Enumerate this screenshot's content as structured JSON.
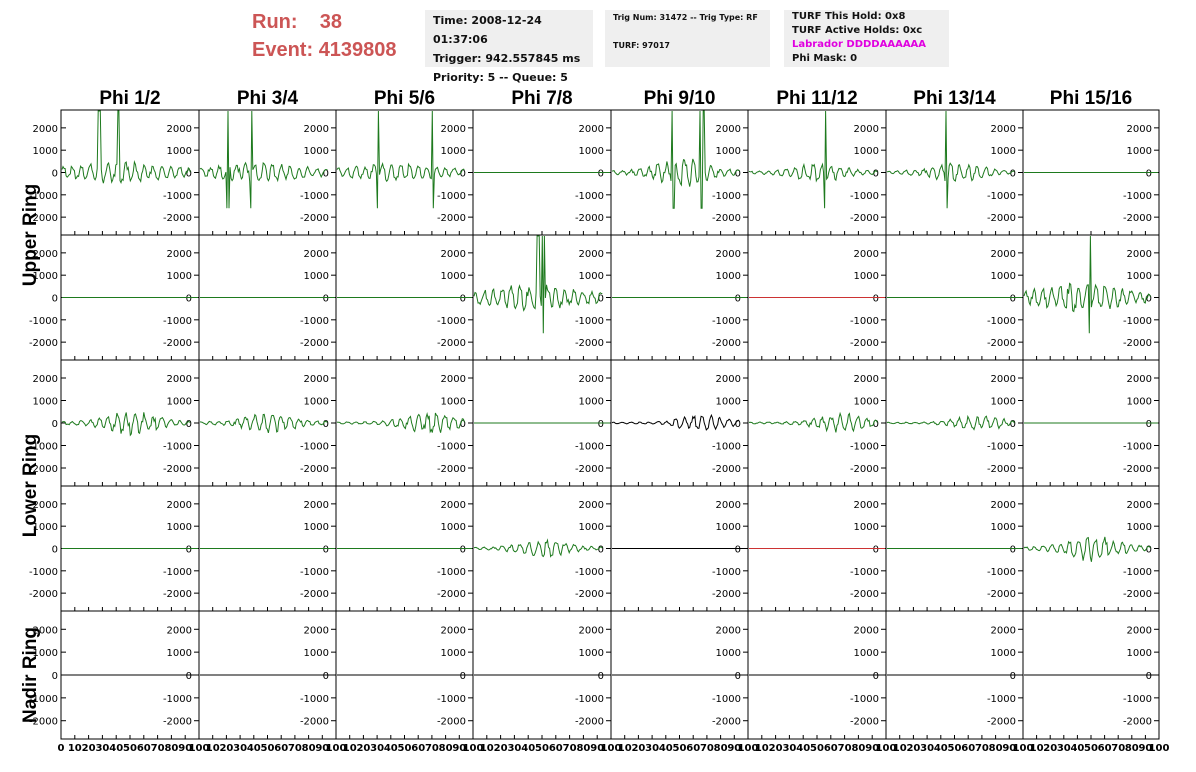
{
  "header": {
    "run_label": "Run:",
    "run_value": "38",
    "event_label": "Event:",
    "event_value": "4139808"
  },
  "info_box_1": {
    "time": "Time: 2008-12-24 01:37:06",
    "trigger": "Trigger: 942.557845 ms",
    "priority": "Priority: 5 -- Queue: 5"
  },
  "info_box_2": {
    "trig": "Trig Num: 31472 -- Trig Type: RF",
    "turf": "TURF: 97017"
  },
  "info_box_3": {
    "hold": "TURF This Hold: 0x8",
    "active": "TURF Active Holds: 0xc",
    "labrador": "Labrador DDDDAAAAAA",
    "phimask": "Phi Mask: 0"
  },
  "chart_data": {
    "type": "line",
    "columns": [
      "Phi 1/2",
      "Phi 3/4",
      "Phi 5/6",
      "Phi 7/8",
      "Phi 9/10",
      "Phi 11/12",
      "Phi 13/14",
      "Phi 15/16"
    ],
    "rows": [
      "Upper Ring",
      "Upper Ring",
      "Lower Ring",
      "Lower Ring",
      "Nadir Ring"
    ],
    "row_labels": [
      "Upper Ring",
      "Lower Ring",
      "Nadir Ring"
    ],
    "ylim": [
      -2800,
      2800
    ],
    "yticks": [
      -2000,
      -1000,
      0,
      1000,
      2000
    ],
    "xlim": [
      0,
      100
    ],
    "xtick_labels": [
      "0",
      "10",
      "20",
      "30",
      "40",
      "50",
      "60",
      "70",
      "80",
      "90",
      "100"
    ],
    "colors": {
      "signal": "#1e7a1e",
      "black": "#000000",
      "red": "#cc3333",
      "grid": "#000000"
    },
    "panels": [
      [
        {
          "amp": 550,
          "env": "broad",
          "spikes": [
            29,
            44
          ],
          "color": "#1e7a1e"
        },
        {
          "amp": 500,
          "env": "broad",
          "spikes": [
            22,
            40
          ],
          "color": "#1e7a1e"
        },
        {
          "amp": 450,
          "env": "broad",
          "spikes": [
            32,
            75
          ],
          "color": "#1e7a1e"
        },
        {
          "amp": 0,
          "env": "flat",
          "spikes": [],
          "color": "#1e7a1e"
        },
        {
          "amp": 700,
          "env": "mid",
          "spikes": [
            48,
            70,
            72
          ],
          "color": "#1e7a1e"
        },
        {
          "amp": 450,
          "env": "mid",
          "spikes": [
            59
          ],
          "color": "#1e7a1e"
        },
        {
          "amp": 500,
          "env": "mid",
          "spikes": [
            47
          ],
          "color": "#1e7a1e"
        },
        {
          "amp": 0,
          "env": "flat",
          "spikes": [],
          "color": "#1e7a1e"
        }
      ],
      [
        {
          "amp": 0,
          "env": "flat",
          "spikes": [],
          "color": "#1e7a1e"
        },
        {
          "amp": 0,
          "env": "flat",
          "spikes": [],
          "color": "#1e7a1e"
        },
        {
          "amp": 0,
          "env": "flat",
          "spikes": [],
          "color": "#1e7a1e"
        },
        {
          "amp": 650,
          "env": "broad",
          "spikes": [
            50,
            54
          ],
          "color": "#1e7a1e"
        },
        {
          "amp": 0,
          "env": "flat",
          "spikes": [],
          "color": "#1e7a1e"
        },
        {
          "amp": 0,
          "env": "flat",
          "spikes": [],
          "color": "#cc3333"
        },
        {
          "amp": 0,
          "env": "flat",
          "spikes": [],
          "color": "#1e7a1e"
        },
        {
          "amp": 700,
          "env": "broad",
          "spikes": [
            52
          ],
          "color": "#1e7a1e"
        }
      ],
      [
        {
          "amp": 550,
          "env": "mid",
          "spikes": [],
          "color": "#1e7a1e"
        },
        {
          "amp": 450,
          "env": "mid",
          "spikes": [],
          "color": "#1e7a1e"
        },
        {
          "amp": 500,
          "env": "late",
          "spikes": [],
          "color": "#1e7a1e"
        },
        {
          "amp": 0,
          "env": "flat",
          "spikes": [],
          "color": "#1e7a1e"
        },
        {
          "amp": 400,
          "env": "late",
          "spikes": [],
          "color": "#000000"
        },
        {
          "amp": 450,
          "env": "late",
          "spikes": [],
          "color": "#1e7a1e"
        },
        {
          "amp": 350,
          "env": "late",
          "spikes": [],
          "color": "#1e7a1e"
        },
        {
          "amp": 0,
          "env": "flat",
          "spikes": [],
          "color": "#1e7a1e"
        }
      ],
      [
        {
          "amp": 0,
          "env": "flat",
          "spikes": [],
          "color": "#1e7a1e"
        },
        {
          "amp": 0,
          "env": "flat",
          "spikes": [],
          "color": "#1e7a1e"
        },
        {
          "amp": 0,
          "env": "flat",
          "spikes": [],
          "color": "#1e7a1e"
        },
        {
          "amp": 400,
          "env": "mid",
          "spikes": [],
          "color": "#1e7a1e"
        },
        {
          "amp": 0,
          "env": "flat",
          "spikes": [],
          "color": "#000000"
        },
        {
          "amp": 0,
          "env": "flat",
          "spikes": [],
          "color": "#cc3333"
        },
        {
          "amp": 0,
          "env": "flat",
          "spikes": [],
          "color": "#1e7a1e"
        },
        {
          "amp": 600,
          "env": "mid",
          "spikes": [],
          "color": "#1e7a1e"
        }
      ],
      [
        {
          "amp": 0,
          "env": "flat",
          "spikes": [],
          "color": "#000000"
        },
        {
          "amp": 0,
          "env": "flat",
          "spikes": [],
          "color": "#000000"
        },
        {
          "amp": 0,
          "env": "flat",
          "spikes": [],
          "color": "#000000"
        },
        {
          "amp": 0,
          "env": "flat",
          "spikes": [],
          "color": "#000000"
        },
        {
          "amp": 0,
          "env": "flat",
          "spikes": [],
          "color": "#000000"
        },
        {
          "amp": 0,
          "env": "flat",
          "spikes": [],
          "color": "#000000"
        },
        {
          "amp": 0,
          "env": "flat",
          "spikes": [],
          "color": "#000000"
        },
        {
          "amp": 0,
          "env": "flat",
          "spikes": [],
          "color": "#000000"
        }
      ]
    ]
  }
}
